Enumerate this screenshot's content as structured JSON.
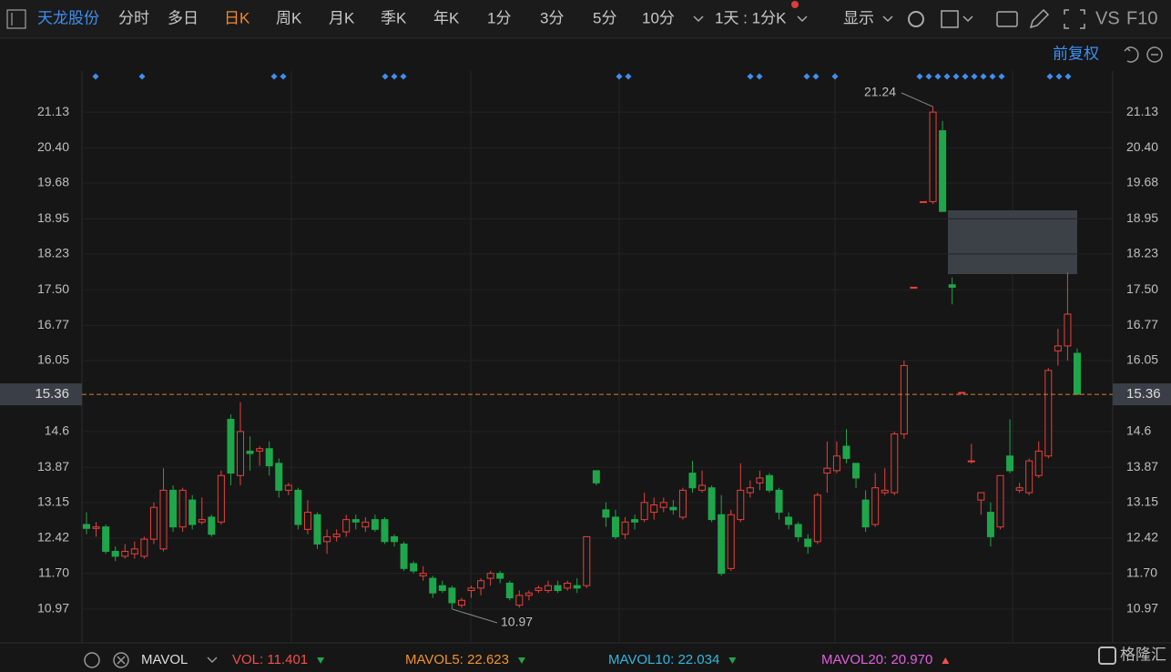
{
  "header": {
    "stock": "天龙股份",
    "tabs": [
      "分时",
      "多日",
      "日K",
      "周K",
      "月K",
      "季K",
      "年K",
      "1分",
      "3分",
      "5分",
      "10分"
    ],
    "active_tab": 2,
    "period": "1天 : 1分K",
    "display": "显示",
    "vs": "VS",
    "f10": "F10",
    "adjust": "前复权"
  },
  "chart_data": {
    "type": "candlestick",
    "up_color": "#e8413b",
    "down_color": "#1fa64a",
    "grid": true,
    "ylim": [
      10.28,
      21.97
    ],
    "yticks": [
      21.13,
      {
        "value": 20.4,
        "label": "20.40"
      },
      19.68,
      18.95,
      18.23,
      {
        "value": 17.5,
        "label": "17.50"
      },
      16.77,
      16.05,
      14.6,
      13.87,
      13.15,
      12.42,
      {
        "value": 11.7,
        "label": "11.70"
      },
      10.97
    ],
    "yticks_labels_fix": null,
    "last_price": 15.36,
    "high_label": 21.24,
    "low_label": 10.97,
    "ohlc": [
      [
        12.7,
        12.95,
        12.5,
        12.62
      ],
      [
        12.62,
        12.75,
        12.45,
        12.65
      ],
      [
        12.65,
        12.7,
        12.1,
        12.15
      ],
      [
        12.15,
        12.25,
        11.95,
        12.05
      ],
      [
        12.05,
        12.3,
        12,
        12.15
      ],
      [
        12.1,
        12.35,
        12,
        12.2
      ],
      [
        12.05,
        12.45,
        12,
        12.4
      ],
      [
        12.4,
        13.15,
        12.3,
        13.05
      ],
      [
        12.2,
        13.85,
        12.15,
        13.4
      ],
      [
        13.4,
        13.5,
        12.55,
        12.65
      ],
      [
        12.65,
        13.45,
        12.55,
        13.4
      ],
      [
        13.2,
        13.3,
        12.6,
        12.7
      ],
      [
        12.75,
        13.25,
        12.7,
        12.8
      ],
      [
        12.85,
        12.9,
        12.45,
        12.5
      ],
      [
        12.75,
        13.8,
        12.7,
        13.7
      ],
      [
        14.85,
        14.95,
        13.5,
        13.75
      ],
      [
        13.7,
        15.2,
        13.5,
        14.6
      ],
      [
        14.2,
        14.5,
        13.8,
        14.15
      ],
      [
        14.2,
        14.3,
        13.9,
        14.25
      ],
      [
        14.25,
        14.4,
        13.7,
        13.9
      ],
      [
        13.95,
        14.05,
        13.25,
        13.4
      ],
      [
        13.4,
        13.55,
        13.3,
        13.5
      ],
      [
        13.4,
        13.45,
        12.6,
        12.7
      ],
      [
        12.6,
        13.2,
        12.5,
        12.95
      ],
      [
        12.9,
        12.95,
        12.2,
        12.3
      ],
      [
        12.35,
        12.6,
        12.1,
        12.45
      ],
      [
        12.45,
        12.6,
        12.35,
        12.5
      ],
      [
        12.55,
        12.9,
        12.45,
        12.8
      ],
      [
        12.8,
        12.9,
        12.6,
        12.75
      ],
      [
        12.65,
        12.85,
        12.55,
        12.75
      ],
      [
        12.8,
        12.9,
        12.55,
        12.6
      ],
      [
        12.8,
        12.85,
        12.3,
        12.35
      ],
      [
        12.45,
        12.5,
        12.25,
        12.35
      ],
      [
        12.3,
        12.35,
        11.75,
        11.8
      ],
      [
        11.9,
        11.95,
        11.7,
        11.75
      ],
      [
        11.65,
        11.85,
        11.55,
        11.7
      ],
      [
        11.6,
        11.65,
        11.2,
        11.3
      ],
      [
        11.45,
        11.55,
        11.3,
        11.35
      ],
      [
        11.4,
        11.45,
        10.97,
        11.1
      ],
      [
        11.05,
        11.2,
        11,
        11.15
      ],
      [
        11.35,
        11.45,
        11.2,
        11.4
      ],
      [
        11.4,
        11.6,
        11.25,
        11.55
      ],
      [
        11.6,
        11.75,
        11.45,
        11.7
      ],
      [
        11.7,
        11.75,
        11.5,
        11.6
      ],
      [
        11.5,
        11.55,
        11.15,
        11.2
      ],
      [
        11.05,
        11.35,
        11,
        11.25
      ],
      [
        11.25,
        11.35,
        11.15,
        11.3
      ],
      [
        11.35,
        11.45,
        11.3,
        11.4
      ],
      [
        11.35,
        11.55,
        11.3,
        11.45
      ],
      [
        11.45,
        11.55,
        11.3,
        11.35
      ],
      [
        11.4,
        11.55,
        11.35,
        11.5
      ],
      [
        11.45,
        11.6,
        11.3,
        11.4
      ],
      [
        11.45,
        12.45,
        11.4,
        12.45
      ],
      [
        13.8,
        13.8,
        13.5,
        13.55
      ],
      [
        13,
        13.15,
        12.65,
        12.85
      ],
      [
        12.85,
        13,
        12.4,
        12.45
      ],
      [
        12.5,
        12.85,
        12.4,
        12.75
      ],
      [
        12.8,
        12.9,
        12.6,
        12.75
      ],
      [
        12.8,
        13.35,
        12.75,
        13.15
      ],
      [
        12.95,
        13.25,
        12.8,
        13.1
      ],
      [
        13.05,
        13.25,
        12.95,
        13.15
      ],
      [
        13.05,
        13.2,
        12.9,
        13
      ],
      [
        12.85,
        13.45,
        12.8,
        13.4
      ],
      [
        13.75,
        14,
        13.35,
        13.45
      ],
      [
        13.4,
        13.8,
        13.35,
        13.5
      ],
      [
        13.45,
        13.5,
        12.75,
        12.8
      ],
      [
        12.9,
        13.3,
        11.65,
        11.7
      ],
      [
        11.8,
        13,
        11.75,
        12.9
      ],
      [
        12.8,
        13.95,
        12.75,
        13.4
      ],
      [
        13.35,
        13.6,
        13.25,
        13.45
      ],
      [
        13.55,
        13.8,
        13.4,
        13.65
      ],
      [
        13.7,
        13.75,
        13.35,
        13.4
      ],
      [
        13.4,
        13.45,
        12.8,
        12.95
      ],
      [
        12.85,
        12.95,
        12.6,
        12.7
      ],
      [
        12.7,
        12.75,
        12.35,
        12.45
      ],
      [
        12.4,
        12.5,
        12.1,
        12.25
      ],
      [
        12.35,
        13.35,
        12.3,
        13.3
      ],
      [
        13.75,
        14.4,
        13.35,
        13.85
      ],
      [
        13.8,
        14.4,
        13.75,
        14.1
      ],
      [
        14.3,
        14.65,
        13.95,
        14.05
      ],
      [
        13.95,
        13.95,
        13.45,
        13.65
      ],
      [
        13.2,
        13.4,
        12.55,
        12.65
      ],
      [
        12.7,
        13.75,
        12.65,
        13.45
      ],
      [
        13.35,
        13.85,
        13.3,
        13.4
      ],
      [
        13.35,
        14.6,
        13.3,
        14.55
      ],
      [
        14.55,
        16.05,
        14.45,
        15.95
      ],
      [
        17.55,
        17.55,
        17.55,
        17.55
      ],
      [
        19.3,
        19.3,
        19.3,
        19.3
      ],
      [
        19.3,
        21.24,
        19.25,
        21.13
      ],
      [
        20.75,
        20.95,
        19.1,
        19.1
      ],
      [
        17.6,
        17.75,
        17.2,
        17.55
      ],
      [
        15.4,
        15.4,
        15.4,
        15.4
      ],
      [
        14,
        14.35,
        13.95,
        14
      ],
      [
        13.2,
        13.35,
        12.9,
        13.35
      ],
      [
        12.95,
        13.15,
        12.25,
        12.45
      ],
      [
        12.65,
        13.7,
        12.6,
        13.7
      ],
      [
        14.1,
        14.85,
        13.75,
        13.8
      ],
      [
        13.4,
        13.55,
        13.35,
        13.45
      ],
      [
        13.35,
        14.05,
        13.3,
        14
      ],
      [
        13.7,
        14.4,
        13.65,
        14.2
      ],
      [
        14.1,
        15.9,
        14.05,
        15.85
      ],
      [
        16.25,
        16.7,
        15.95,
        16.35
      ],
      [
        16.35,
        17.85,
        16.05,
        17
      ],
      [
        16.2,
        16.3,
        15.35,
        15.36
      ]
    ]
  },
  "footer": {
    "indicator": "MAVOL",
    "items": [
      {
        "name": "VOL:",
        "value": 11.401,
        "color": "#f2504b",
        "trend": "down"
      },
      {
        "name": "MAVOL5:",
        "value": 22.623,
        "color": "#f0922f",
        "trend": "down"
      },
      {
        "name": "MAVOL10:",
        "value": 22.034,
        "color": "#30b8e0",
        "trend": "down"
      },
      {
        "name": "MAVOL20:",
        "value": {
          "value": 20.97,
          "label": "20.970"
        },
        "color": "#e060e0",
        "trend": "up"
      }
    ],
    "brand": "格隆汇"
  }
}
